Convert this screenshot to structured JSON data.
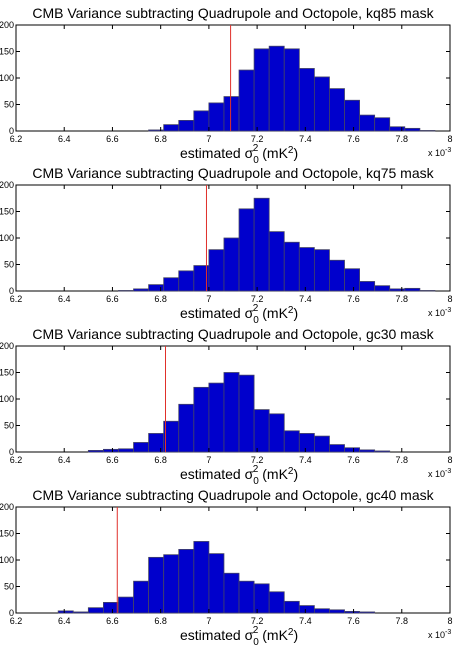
{
  "chart_data": [
    {
      "type": "bar",
      "title": "CMB Variance subtracting Quadrupole and Octopole, kq85 mask",
      "xlabel_main": "estimated σ",
      "xlabel_sub": "0",
      "xlabel_sup": "2",
      "xlabel_units": " (mK",
      "xlabel_units_sup": "2",
      "xlabel_close": ")",
      "x_multiplier_base": "x 10",
      "x_multiplier_exp": "-3",
      "xlim": [
        6.2,
        8.0
      ],
      "ylim": [
        0,
        200
      ],
      "xticks": [
        "6.2",
        "6.4",
        "6.6",
        "6.8",
        "7",
        "7.2",
        "7.4",
        "7.6",
        "7.8",
        "8"
      ],
      "yticks": [
        "0",
        "50",
        "100",
        "150",
        "200"
      ],
      "bin_width": 0.0625,
      "bin_edges_start": [
        6.75,
        6.8125,
        6.875,
        6.9375,
        7.0,
        7.0625,
        7.125,
        7.1875,
        7.25,
        7.3125,
        7.375,
        7.4375,
        7.5,
        7.5625,
        7.625,
        7.6875,
        7.75,
        7.8125,
        7.875
      ],
      "values": [
        2,
        12,
        20,
        38,
        53,
        65,
        115,
        155,
        160,
        155,
        118,
        102,
        80,
        58,
        30,
        25,
        8,
        5,
        1
      ],
      "observed_value": 7.09,
      "bar_color": "#0000cc",
      "line_color": "#e0302a"
    },
    {
      "type": "bar",
      "title": "CMB Variance subtracting Quadrupole and Octopole, kq75 mask",
      "xlabel_main": "estimated σ",
      "xlabel_sub": "0",
      "xlabel_sup": "2",
      "xlabel_units": " (mK",
      "xlabel_units_sup": "2",
      "xlabel_close": ")",
      "x_multiplier_base": "x 10",
      "x_multiplier_exp": "-3",
      "xlim": [
        6.2,
        8.0
      ],
      "ylim": [
        0,
        200
      ],
      "xticks": [
        "6.2",
        "6.4",
        "6.6",
        "6.8",
        "7",
        "7.2",
        "7.4",
        "7.6",
        "7.8",
        "8"
      ],
      "yticks": [
        "0",
        "50",
        "100",
        "150",
        "200"
      ],
      "bin_width": 0.0625,
      "bin_edges_start": [
        6.625,
        6.6875,
        6.75,
        6.8125,
        6.875,
        6.9375,
        7.0,
        7.0625,
        7.125,
        7.1875,
        7.25,
        7.3125,
        7.375,
        7.4375,
        7.5,
        7.5625,
        7.625,
        7.6875,
        7.75,
        7.8125,
        7.875
      ],
      "values": [
        1,
        4,
        12,
        25,
        38,
        48,
        78,
        100,
        155,
        175,
        112,
        92,
        82,
        78,
        58,
        42,
        18,
        10,
        4,
        5,
        1
      ],
      "observed_value": 6.99,
      "bar_color": "#0000cc",
      "line_color": "#e0302a"
    },
    {
      "type": "bar",
      "title": "CMB Variance subtracting Quadrupole and Octopole, gc30 mask",
      "xlabel_main": "estimated σ",
      "xlabel_sub": "0",
      "xlabel_sup": "2",
      "xlabel_units": " (mK",
      "xlabel_units_sup": "2",
      "xlabel_close": ")",
      "x_multiplier_base": "x 10",
      "x_multiplier_exp": "-3",
      "xlim": [
        6.2,
        8.0
      ],
      "ylim": [
        0,
        200
      ],
      "xticks": [
        "6.2",
        "6.4",
        "6.6",
        "6.8",
        "7",
        "7.2",
        "7.4",
        "7.6",
        "7.8",
        "8"
      ],
      "yticks": [
        "0",
        "50",
        "100",
        "150",
        "200"
      ],
      "bin_width": 0.0625,
      "bin_edges_start": [
        6.5,
        6.5625,
        6.625,
        6.6875,
        6.75,
        6.8125,
        6.875,
        6.9375,
        7.0,
        7.0625,
        7.125,
        7.1875,
        7.25,
        7.3125,
        7.375,
        7.4375,
        7.5,
        7.5625,
        7.625,
        7.6875
      ],
      "values": [
        3,
        5,
        6,
        18,
        35,
        58,
        90,
        122,
        130,
        150,
        145,
        80,
        72,
        40,
        35,
        30,
        14,
        8,
        4,
        2
      ],
      "observed_value": 6.82,
      "bar_color": "#0000cc",
      "line_color": "#e0302a"
    },
    {
      "type": "bar",
      "title": "CMB Variance subtracting Quadrupole and Octopole, gc40 mask",
      "xlabel_main": "estimated σ",
      "xlabel_sub": "0",
      "xlabel_sup": "2",
      "xlabel_units": " (mK",
      "xlabel_units_sup": "2",
      "xlabel_close": ")",
      "x_multiplier_base": "x 10",
      "x_multiplier_exp": "-3",
      "xlim": [
        6.2,
        8.0
      ],
      "ylim": [
        0,
        200
      ],
      "xticks": [
        "6.2",
        "6.4",
        "6.6",
        "6.8",
        "7",
        "7.2",
        "7.4",
        "7.6",
        "7.8",
        "8"
      ],
      "yticks": [
        "0",
        "50",
        "100",
        "150",
        "200"
      ],
      "bin_width": 0.0625,
      "bin_edges_start": [
        6.375,
        6.4375,
        6.5,
        6.5625,
        6.625,
        6.6875,
        6.75,
        6.8125,
        6.875,
        6.9375,
        7.0,
        7.0625,
        7.125,
        7.1875,
        7.25,
        7.3125,
        7.375,
        7.4375,
        7.5,
        7.5625,
        7.625
      ],
      "values": [
        4,
        2,
        10,
        20,
        30,
        60,
        105,
        110,
        120,
        135,
        112,
        75,
        60,
        55,
        40,
        22,
        14,
        8,
        6,
        3,
        2
      ],
      "observed_value": 6.62,
      "bar_color": "#0000cc",
      "line_color": "#e0302a"
    }
  ]
}
